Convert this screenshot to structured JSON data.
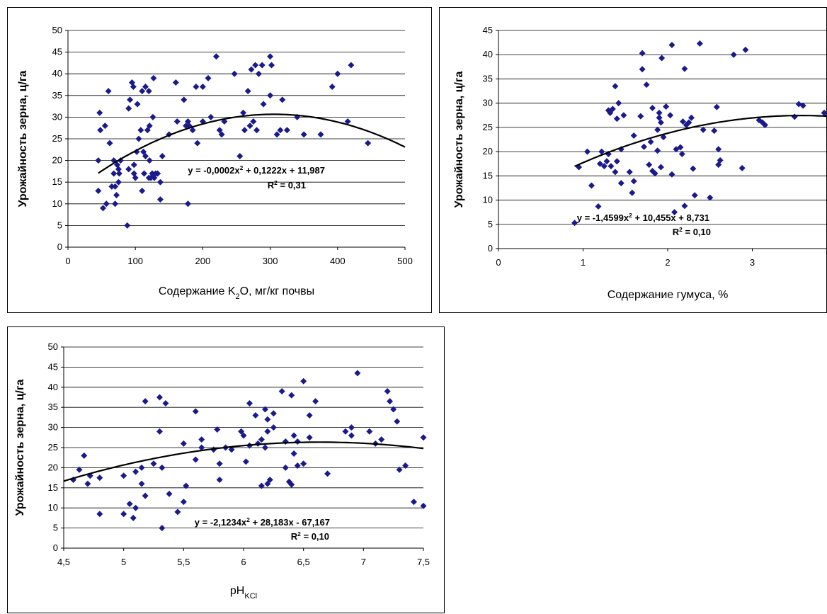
{
  "chart_data": [
    {
      "type": "scatter",
      "title": "",
      "xlabel": "Содержание K2O, мг/кг почвы",
      "ylabel": "Урожайность зерна, ц/га",
      "xlim": [
        0,
        500
      ],
      "ylim": [
        0,
        50
      ],
      "xticks": [
        "0",
        "100",
        "200",
        "300",
        "400",
        "500"
      ],
      "yticks": [
        "0",
        "5",
        "10",
        "15",
        "20",
        "25",
        "30",
        "35",
        "40",
        "45",
        "50"
      ],
      "grid": true,
      "marker_color": "#1a1a8c",
      "equation": "y = -0,0002x² + 0,1222x + 11,987",
      "r2": "R² = 0,31",
      "trendline": {
        "type": "polynomial",
        "coef": [
          -0.0002,
          0.1222,
          11.987
        ],
        "range": [
          45,
          500
        ]
      },
      "points": [
        [
          45,
          20
        ],
        [
          45,
          13
        ],
        [
          47,
          31
        ],
        [
          48,
          27
        ],
        [
          52,
          9
        ],
        [
          55,
          28
        ],
        [
          57,
          10
        ],
        [
          60,
          36
        ],
        [
          62,
          24
        ],
        [
          65,
          14
        ],
        [
          68,
          20
        ],
        [
          68,
          17
        ],
        [
          70,
          10
        ],
        [
          70,
          14
        ],
        [
          72,
          12
        ],
        [
          73,
          19
        ],
        [
          75,
          18
        ],
        [
          75,
          15
        ],
        [
          76,
          17
        ],
        [
          78,
          20
        ],
        [
          88,
          5
        ],
        [
          90,
          18
        ],
        [
          90,
          32
        ],
        [
          92,
          34
        ],
        [
          95,
          38
        ],
        [
          97,
          37
        ],
        [
          98,
          17
        ],
        [
          98,
          19
        ],
        [
          100,
          16
        ],
        [
          102,
          22
        ],
        [
          103,
          33
        ],
        [
          105,
          25
        ],
        [
          108,
          27
        ],
        [
          110,
          36
        ],
        [
          110,
          13
        ],
        [
          112,
          22
        ],
        [
          113,
          17
        ],
        [
          115,
          37
        ],
        [
          115,
          21
        ],
        [
          118,
          27
        ],
        [
          120,
          36
        ],
        [
          120,
          16
        ],
        [
          121,
          20
        ],
        [
          121,
          28
        ],
        [
          123,
          16
        ],
        [
          125,
          17
        ],
        [
          126,
          30
        ],
        [
          127,
          39
        ],
        [
          128,
          16
        ],
        [
          130,
          17
        ],
        [
          133,
          17
        ],
        [
          137,
          15
        ],
        [
          137,
          11
        ],
        [
          140,
          21
        ],
        [
          150,
          26
        ],
        [
          160,
          38
        ],
        [
          162,
          29
        ],
        [
          172,
          34
        ],
        [
          175,
          28
        ],
        [
          178,
          29
        ],
        [
          178,
          10
        ],
        [
          180,
          28
        ],
        [
          185,
          27
        ],
        [
          190,
          37
        ],
        [
          192,
          24
        ],
        [
          200,
          29
        ],
        [
          200,
          37
        ],
        [
          208,
          39
        ],
        [
          212,
          30
        ],
        [
          220,
          44
        ],
        [
          225,
          27
        ],
        [
          228,
          26
        ],
        [
          232,
          29
        ],
        [
          247,
          40
        ],
        [
          255,
          21
        ],
        [
          260,
          31
        ],
        [
          262,
          27
        ],
        [
          267,
          36
        ],
        [
          270,
          28
        ],
        [
          272,
          41
        ],
        [
          275,
          29
        ],
        [
          278,
          42
        ],
        [
          280,
          27
        ],
        [
          283,
          40
        ],
        [
          288,
          42
        ],
        [
          290,
          33
        ],
        [
          300,
          35
        ],
        [
          300,
          44
        ],
        [
          302,
          42
        ],
        [
          310,
          26
        ],
        [
          315,
          27
        ],
        [
          318,
          34
        ],
        [
          325,
          27
        ],
        [
          340,
          30
        ],
        [
          350,
          26
        ],
        [
          375,
          26
        ],
        [
          392,
          37
        ],
        [
          400,
          40
        ],
        [
          415,
          29
        ],
        [
          420,
          42
        ],
        [
          445,
          24
        ]
      ]
    },
    {
      "type": "scatter",
      "title": "",
      "xlabel": "Содержание гумуса, %",
      "ylabel": "Урожайность зерна, ц/га",
      "xlim": [
        0,
        4
      ],
      "ylim": [
        0,
        45
      ],
      "xticks": [
        "0",
        "1",
        "2",
        "3",
        "4"
      ],
      "yticks": [
        "0",
        "5",
        "10",
        "15",
        "20",
        "25",
        "30",
        "35",
        "40",
        "45"
      ],
      "grid": true,
      "marker_color": "#1a1a8c",
      "equation": "y = -1,4599x² + 10,455x + 8,731",
      "r2": "R² = 0,10",
      "trendline": {
        "type": "polynomial",
        "coef": [
          -1.4599,
          10.455,
          8.731
        ],
        "range": [
          0.9,
          4.0
        ]
      },
      "points": [
        [
          0.9,
          5.3
        ],
        [
          0.95,
          16.8
        ],
        [
          1.05,
          20
        ],
        [
          1.1,
          13
        ],
        [
          1.18,
          8.7
        ],
        [
          1.2,
          17.5
        ],
        [
          1.22,
          20
        ],
        [
          1.25,
          17
        ],
        [
          1.28,
          18
        ],
        [
          1.3,
          28.5
        ],
        [
          1.3,
          19.5
        ],
        [
          1.32,
          28
        ],
        [
          1.33,
          17
        ],
        [
          1.35,
          28.8
        ],
        [
          1.38,
          15.8
        ],
        [
          1.38,
          33.5
        ],
        [
          1.4,
          26.8
        ],
        [
          1.4,
          18
        ],
        [
          1.42,
          30
        ],
        [
          1.45,
          13.5
        ],
        [
          1.45,
          20.5
        ],
        [
          1.48,
          27.5
        ],
        [
          1.55,
          15.8
        ],
        [
          1.58,
          11.5
        ],
        [
          1.6,
          13.9
        ],
        [
          1.6,
          23.3
        ],
        [
          1.68,
          27.3
        ],
        [
          1.7,
          37
        ],
        [
          1.7,
          40.3
        ],
        [
          1.72,
          21
        ],
        [
          1.75,
          33.8
        ],
        [
          1.78,
          17.3
        ],
        [
          1.8,
          22
        ],
        [
          1.82,
          29
        ],
        [
          1.82,
          16
        ],
        [
          1.85,
          15.5
        ],
        [
          1.88,
          24.5
        ],
        [
          1.88,
          20.2
        ],
        [
          1.9,
          28
        ],
        [
          1.9,
          27
        ],
        [
          1.92,
          26
        ],
        [
          1.92,
          16.8
        ],
        [
          1.93,
          39.3
        ],
        [
          1.95,
          23
        ],
        [
          1.98,
          29.3
        ],
        [
          2.03,
          27.5
        ],
        [
          2.05,
          42
        ],
        [
          2.05,
          15.3
        ],
        [
          2.08,
          7.5
        ],
        [
          2.1,
          20.5
        ],
        [
          2.15,
          20.9
        ],
        [
          2.17,
          19.5
        ],
        [
          2.18,
          26.2
        ],
        [
          2.2,
          37.1
        ],
        [
          2.2,
          8.8
        ],
        [
          2.22,
          25.5
        ],
        [
          2.25,
          26
        ],
        [
          2.28,
          27
        ],
        [
          2.3,
          16.5
        ],
        [
          2.32,
          11
        ],
        [
          2.38,
          42.3
        ],
        [
          2.42,
          24.5
        ],
        [
          2.5,
          10.5
        ],
        [
          2.55,
          24.3
        ],
        [
          2.58,
          29.2
        ],
        [
          2.6,
          20.5
        ],
        [
          2.62,
          18.2
        ],
        [
          2.6,
          17.3
        ],
        [
          2.78,
          40
        ],
        [
          2.88,
          16.6
        ],
        [
          2.92,
          41
        ],
        [
          3.08,
          26.5
        ],
        [
          3.12,
          26
        ],
        [
          3.15,
          25.5
        ],
        [
          3.5,
          27.2
        ],
        [
          3.55,
          29.8
        ],
        [
          3.6,
          29.5
        ],
        [
          3.85,
          28
        ],
        [
          3.9,
          27.5
        ]
      ]
    },
    {
      "type": "scatter",
      "title": "",
      "xlabel": "pHKCl",
      "ylabel": "Урожайность зерна, ц/га",
      "xlim": [
        4.5,
        7.5
      ],
      "ylim": [
        0,
        50
      ],
      "xticks": [
        "4,5",
        "5",
        "5,5",
        "6",
        "6,5",
        "7",
        "7,5"
      ],
      "yticks": [
        "0",
        "5",
        "10",
        "15",
        "20",
        "25",
        "30",
        "35",
        "40",
        "45",
        "50"
      ],
      "grid": true,
      "marker_color": "#1a1a8c",
      "equation": "y = -2,1234x² + 28,183x - 67,167",
      "r2": "R² = 0,10",
      "trendline": {
        "type": "polynomial",
        "coef": [
          -2.1234,
          28.183,
          -67.167
        ],
        "range": [
          4.5,
          7.5
        ]
      },
      "points": [
        [
          4.58,
          17
        ],
        [
          4.63,
          19.5
        ],
        [
          4.67,
          23
        ],
        [
          4.7,
          16
        ],
        [
          4.72,
          18
        ],
        [
          4.8,
          8.5
        ],
        [
          4.8,
          17.5
        ],
        [
          5.0,
          8.5
        ],
        [
          5.0,
          18
        ],
        [
          5.05,
          11
        ],
        [
          5.08,
          7.5
        ],
        [
          5.1,
          19
        ],
        [
          5.1,
          10
        ],
        [
          5.15,
          20
        ],
        [
          5.15,
          16
        ],
        [
          5.18,
          13
        ],
        [
          5.18,
          36.5
        ],
        [
          5.25,
          21
        ],
        [
          5.3,
          37.5
        ],
        [
          5.3,
          29
        ],
        [
          5.32,
          5
        ],
        [
          5.32,
          20
        ],
        [
          5.35,
          36
        ],
        [
          5.38,
          13.5
        ],
        [
          5.45,
          9
        ],
        [
          5.5,
          26
        ],
        [
          5.5,
          11.5
        ],
        [
          5.52,
          15.5
        ],
        [
          5.6,
          22
        ],
        [
          5.6,
          34
        ],
        [
          5.65,
          27
        ],
        [
          5.65,
          25
        ],
        [
          5.75,
          24.5
        ],
        [
          5.78,
          29.5
        ],
        [
          5.8,
          17
        ],
        [
          5.8,
          21
        ],
        [
          5.85,
          25
        ],
        [
          5.9,
          24.5
        ],
        [
          5.98,
          29
        ],
        [
          6.0,
          28
        ],
        [
          6.02,
          21.5
        ],
        [
          6.05,
          36
        ],
        [
          6.05,
          25.5
        ],
        [
          6.1,
          33
        ],
        [
          6.12,
          26
        ],
        [
          6.15,
          15.5
        ],
        [
          6.15,
          27
        ],
        [
          6.18,
          34.5
        ],
        [
          6.18,
          25
        ],
        [
          6.2,
          32
        ],
        [
          6.2,
          29
        ],
        [
          6.2,
          16
        ],
        [
          6.22,
          17
        ],
        [
          6.25,
          30
        ],
        [
          6.25,
          33.5
        ],
        [
          6.32,
          39
        ],
        [
          6.35,
          26.5
        ],
        [
          6.35,
          20
        ],
        [
          6.38,
          16.5
        ],
        [
          6.4,
          38
        ],
        [
          6.4,
          15.8
        ],
        [
          6.42,
          28
        ],
        [
          6.42,
          23.5
        ],
        [
          6.45,
          20.5
        ],
        [
          6.45,
          26.5
        ],
        [
          6.5,
          41.5
        ],
        [
          6.5,
          21
        ],
        [
          6.55,
          33
        ],
        [
          6.55,
          27.5
        ],
        [
          6.6,
          36.5
        ],
        [
          6.7,
          18.5
        ],
        [
          6.85,
          29
        ],
        [
          6.9,
          30
        ],
        [
          6.9,
          28
        ],
        [
          6.95,
          43.5
        ],
        [
          7.05,
          29
        ],
        [
          7.1,
          26
        ],
        [
          7.15,
          27
        ],
        [
          7.2,
          39
        ],
        [
          7.22,
          36.5
        ],
        [
          7.25,
          34.5
        ],
        [
          7.28,
          31.5
        ],
        [
          7.3,
          19.5
        ],
        [
          7.35,
          20.5
        ],
        [
          7.42,
          11.5
        ],
        [
          7.5,
          10.5
        ],
        [
          7.5,
          27.5
        ]
      ]
    }
  ]
}
